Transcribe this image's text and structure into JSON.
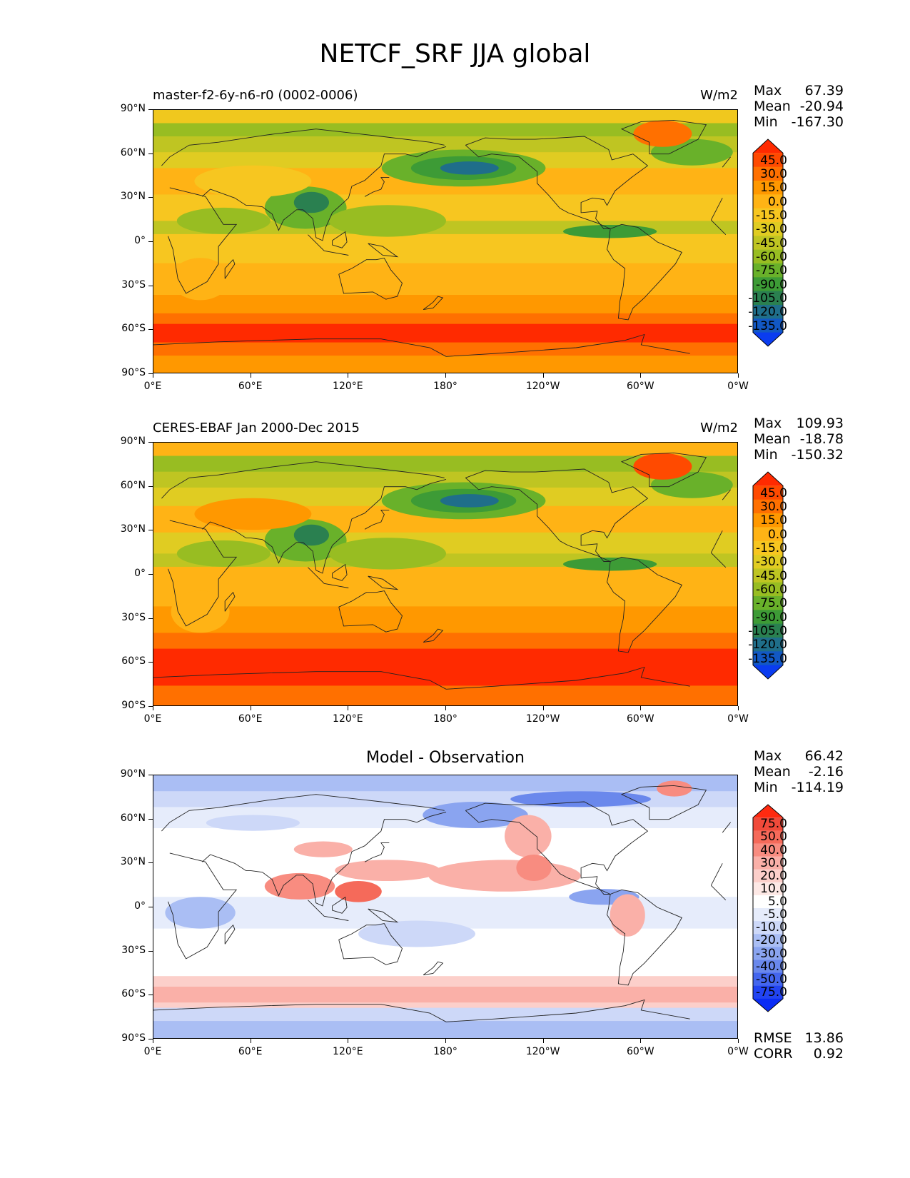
{
  "figure": {
    "title": "NETCF_SRF JJA global"
  },
  "axes": {
    "lat_labels": [
      "90°N",
      "60°N",
      "30°N",
      "0°",
      "30°S",
      "60°S",
      "90°S"
    ],
    "lon_labels": [
      "0°E",
      "60°E",
      "120°E",
      "180°",
      "120°W",
      "60°W",
      "0°W"
    ]
  },
  "panels": [
    {
      "title_left": "master-f2-6y-n6-r0 (0002-0006)",
      "title_center": "",
      "units": "W/m2",
      "stats": [
        {
          "label": "Max",
          "value": "67.39"
        },
        {
          "label": "Mean",
          "value": "-20.94"
        },
        {
          "label": "Min",
          "value": "-167.30"
        }
      ],
      "colorbar": {
        "ticks": [
          "45.0",
          "30.0",
          "15.0",
          "0.0",
          "-15.0",
          "-30.0",
          "-45.0",
          "-60.0",
          "-75.0",
          "-90.0",
          "-105.0",
          "-120.0",
          "-135.0"
        ],
        "colors": [
          "#ff2a00",
          "#ff4a00",
          "#ff7000",
          "#ff9800",
          "#ffb315",
          "#f7c620",
          "#e0cc22",
          "#bfc522",
          "#98bd22",
          "#69b12a",
          "#3d9b36",
          "#2a8050",
          "#1f6e8a",
          "#1258c4",
          "#0a3cf0"
        ]
      }
    },
    {
      "title_left": "CERES-EBAF Jan 2000-Dec 2015",
      "title_center": "",
      "units": "W/m2",
      "stats": [
        {
          "label": "Max",
          "value": "109.93"
        },
        {
          "label": "Mean",
          "value": "-18.78"
        },
        {
          "label": "Min",
          "value": "-150.32"
        }
      ],
      "colorbar": {
        "ticks": [
          "45.0",
          "30.0",
          "15.0",
          "0.0",
          "-15.0",
          "-30.0",
          "-45.0",
          "-60.0",
          "-75.0",
          "-90.0",
          "-105.0",
          "-120.0",
          "-135.0"
        ],
        "colors": [
          "#ff2a00",
          "#ff4a00",
          "#ff7000",
          "#ff9800",
          "#ffb315",
          "#f7c620",
          "#e0cc22",
          "#bfc522",
          "#98bd22",
          "#69b12a",
          "#3d9b36",
          "#2a8050",
          "#1f6e8a",
          "#1258c4",
          "#0a3cf0"
        ]
      }
    },
    {
      "title_left": "",
      "title_center": "Model - Observation",
      "units": "",
      "stats": [
        {
          "label": "Max",
          "value": "66.42"
        },
        {
          "label": "Mean",
          "value": "-2.16"
        },
        {
          "label": "Min",
          "value": "-114.19"
        }
      ],
      "colorbar": {
        "ticks": [
          "75.0",
          "50.0",
          "40.0",
          "30.0",
          "20.0",
          "10.0",
          "5.0",
          "-5.0",
          "-10.0",
          "-20.0",
          "-30.0",
          "-40.0",
          "-50.0",
          "-75.0"
        ],
        "colors": [
          "#ff2a10",
          "#f04a3a",
          "#f56a5a",
          "#f88c80",
          "#fab0a8",
          "#fccfca",
          "#fde8e5",
          "#ffffff",
          "#e6ecfb",
          "#cdd8f8",
          "#aabef4",
          "#8aa4f0",
          "#6a88ec",
          "#4466ee",
          "#2244f2",
          "#0a2cf5"
        ]
      },
      "bottom_stats": [
        {
          "label": "RMSE",
          "value": "13.86"
        },
        {
          "label": "CORR",
          "value": "0.92"
        }
      ]
    }
  ]
}
